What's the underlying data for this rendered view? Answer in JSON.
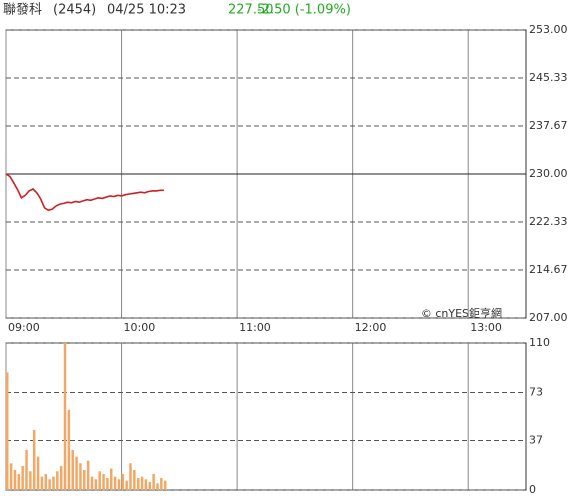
{
  "header": {
    "name": "聯發科",
    "code": "(2454)",
    "datetime": "04/25 10:23",
    "price": "227.50",
    "change": "-2.50 (-1.09%)",
    "watermark": "© cnYES鉅亨網"
  },
  "chart_data": [
    {
      "type": "line",
      "color": "#cc2222",
      "previous_close": 230,
      "x": [
        "09:00",
        "09:02",
        "09:04",
        "09:06",
        "09:08",
        "09:10",
        "09:12",
        "09:14",
        "09:16",
        "09:18",
        "09:20",
        "09:22",
        "09:24",
        "09:26",
        "09:28",
        "09:30",
        "09:32",
        "09:34",
        "09:36",
        "09:38",
        "09:40",
        "09:42",
        "09:44",
        "09:46",
        "09:48",
        "09:50",
        "09:52",
        "09:54",
        "09:56",
        "09:58",
        "10:00",
        "10:02",
        "10:04",
        "10:06",
        "10:08",
        "10:10",
        "10:12",
        "10:14",
        "10:16",
        "10:18",
        "10:20",
        "10:22"
      ],
      "values": [
        230.0,
        229.6,
        228.6,
        227.5,
        226.2,
        226.6,
        227.3,
        227.6,
        227.0,
        226.0,
        224.6,
        224.2,
        224.4,
        224.9,
        225.2,
        225.3,
        225.5,
        225.4,
        225.6,
        225.5,
        225.7,
        225.9,
        225.8,
        226.0,
        226.2,
        226.1,
        226.3,
        226.5,
        226.4,
        226.6,
        226.5,
        226.7,
        226.8,
        226.9,
        227.0,
        227.1,
        227.0,
        227.2,
        227.3,
        227.3,
        227.4,
        227.4
      ],
      "xlim": [
        "09:00",
        "13:30"
      ],
      "xticks": [
        "09:00",
        "10:00",
        "11:00",
        "12:00",
        "13:00"
      ],
      "ylim": [
        207,
        253
      ],
      "yticks": [
        {
          "value": 207,
          "label": "207.00"
        },
        {
          "value": 214.67,
          "label": "214.67"
        },
        {
          "value": 222.33,
          "label": "222.33"
        },
        {
          "value": 230,
          "label": "230.00"
        },
        {
          "value": 237.67,
          "label": "237.67"
        },
        {
          "value": 245.33,
          "label": "245.33"
        },
        {
          "value": 253,
          "label": "253.00"
        }
      ]
    },
    {
      "type": "bar",
      "color": "#f2a864",
      "x": [
        "09:00",
        "09:02",
        "09:04",
        "09:06",
        "09:08",
        "09:10",
        "09:12",
        "09:14",
        "09:16",
        "09:18",
        "09:20",
        "09:22",
        "09:24",
        "09:26",
        "09:28",
        "09:30",
        "09:32",
        "09:34",
        "09:36",
        "09:38",
        "09:40",
        "09:42",
        "09:44",
        "09:46",
        "09:48",
        "09:50",
        "09:52",
        "09:54",
        "09:56",
        "09:58",
        "10:00",
        "10:02",
        "10:04",
        "10:06",
        "10:08",
        "10:10",
        "10:12",
        "10:14",
        "10:16",
        "10:18",
        "10:20",
        "10:22"
      ],
      "values": [
        88,
        20,
        15,
        12,
        18,
        30,
        14,
        45,
        25,
        10,
        12,
        8,
        10,
        14,
        18,
        110,
        60,
        30,
        25,
        20,
        15,
        22,
        10,
        8,
        14,
        12,
        9,
        16,
        10,
        8,
        12,
        7,
        20,
        15,
        9,
        10,
        8,
        6,
        12,
        5,
        9,
        7
      ],
      "xlim": [
        "09:00",
        "13:30"
      ],
      "xticks": [
        "09:00",
        "10:00",
        "11:00",
        "12:00",
        "13:00"
      ],
      "ylim": [
        0,
        110
      ],
      "yticks": [
        0,
        37,
        73,
        110
      ]
    }
  ]
}
